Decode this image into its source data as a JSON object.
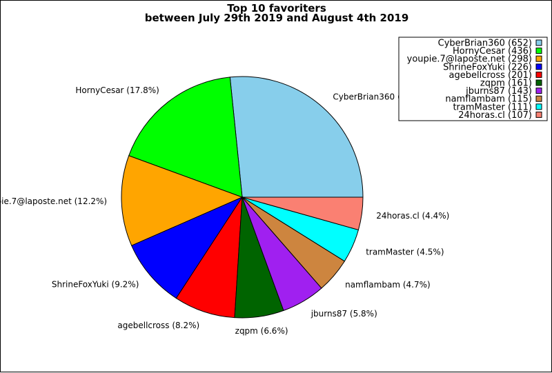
{
  "chart_data": {
    "type": "pie",
    "title_lines": [
      "Top 10 favoriters",
      "between July 29th 2019 and August 4th 2019"
    ],
    "slices": [
      {
        "label": "CyberBrian360",
        "value": 652,
        "percent": "26.6%",
        "color": "#87ceeb"
      },
      {
        "label": "HornyCesar",
        "value": 436,
        "percent": "17.8%",
        "color": "#00ff00"
      },
      {
        "label": "youpie.7@laposte.net",
        "value": 298,
        "percent": "12.2%",
        "color": "#ffa500"
      },
      {
        "label": "ShrineFoxYuki",
        "value": 226,
        "percent": "9.2%",
        "color": "#0000ff"
      },
      {
        "label": "agebellcross",
        "value": 201,
        "percent": "8.2%",
        "color": "#ff0000"
      },
      {
        "label": "zqpm",
        "value": 161,
        "percent": "6.6%",
        "color": "#006400"
      },
      {
        "label": "jburns87",
        "value": 143,
        "percent": "5.8%",
        "color": "#a020f0"
      },
      {
        "label": "namflambam",
        "value": 115,
        "percent": "4.7%",
        "color": "#cd853f"
      },
      {
        "label": "tramMaster",
        "value": 111,
        "percent": "4.5%",
        "color": "#00ffff"
      },
      {
        "label": "24horas.cl",
        "value": 107,
        "percent": "4.4%",
        "color": "#fa8072"
      }
    ],
    "legend_position": "top-right"
  }
}
